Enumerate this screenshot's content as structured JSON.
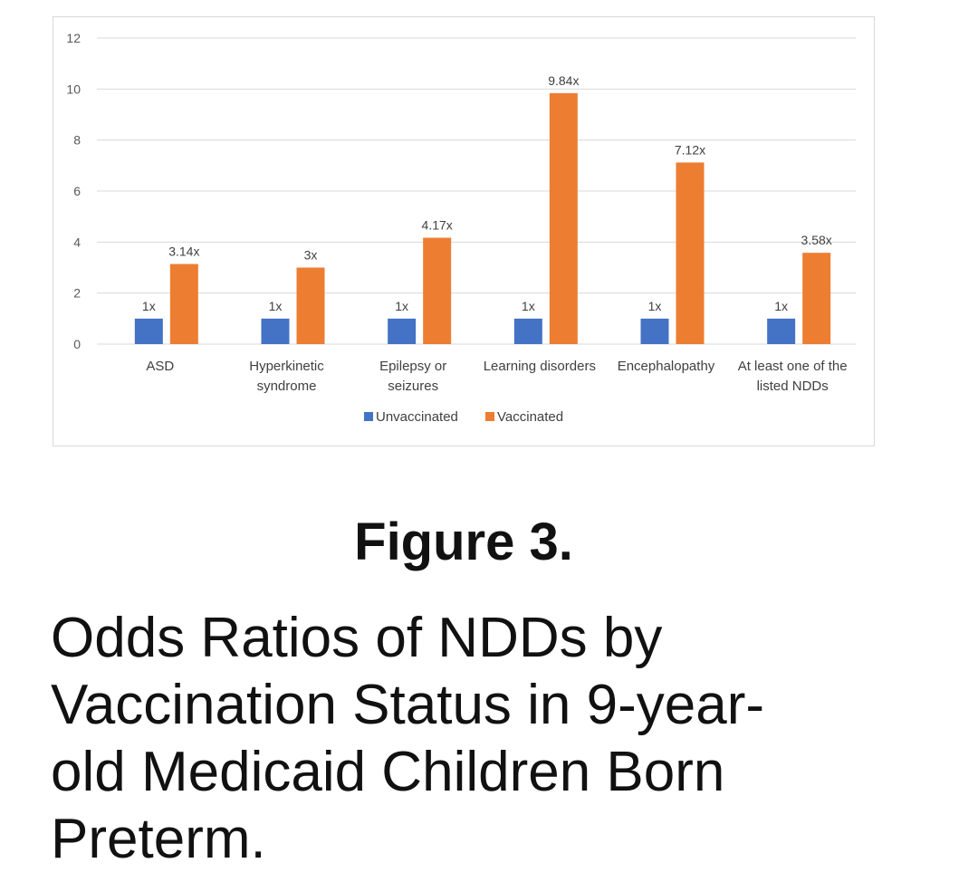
{
  "chart_data": {
    "type": "bar",
    "categories": [
      [
        "ASD"
      ],
      [
        "Hyperkinetic",
        "syndrome"
      ],
      [
        "Epilepsy or",
        "seizures"
      ],
      [
        "Learning disorders"
      ],
      [
        "Encephalopathy"
      ],
      [
        "At least one of the",
        "listed NDDs"
      ]
    ],
    "series": [
      {
        "name": "Unvaccinated",
        "color": "#4472C4",
        "values": [
          1,
          1,
          1,
          1,
          1,
          1
        ],
        "labels": [
          "1x",
          "1x",
          "1x",
          "1x",
          "1x",
          "1x"
        ]
      },
      {
        "name": "Vaccinated",
        "color": "#ED7D31",
        "values": [
          3.14,
          3,
          4.17,
          9.84,
          7.12,
          3.58
        ],
        "labels": [
          "3.14x",
          "3x",
          "4.17x",
          "9.84x",
          "7.12x",
          "3.58x"
        ]
      }
    ],
    "ylim": [
      0,
      12
    ],
    "yticks": [
      0,
      2,
      4,
      6,
      8,
      10,
      12
    ],
    "grid": true,
    "legend": "bottom",
    "gridColor": "#d9d9d9"
  },
  "figure": {
    "label": "Figure 3.",
    "caption_lines": [
      "Odds Ratios of NDDs by",
      "Vaccination Status in 9-year-",
      "old Medicaid Children Born",
      "Preterm."
    ]
  }
}
